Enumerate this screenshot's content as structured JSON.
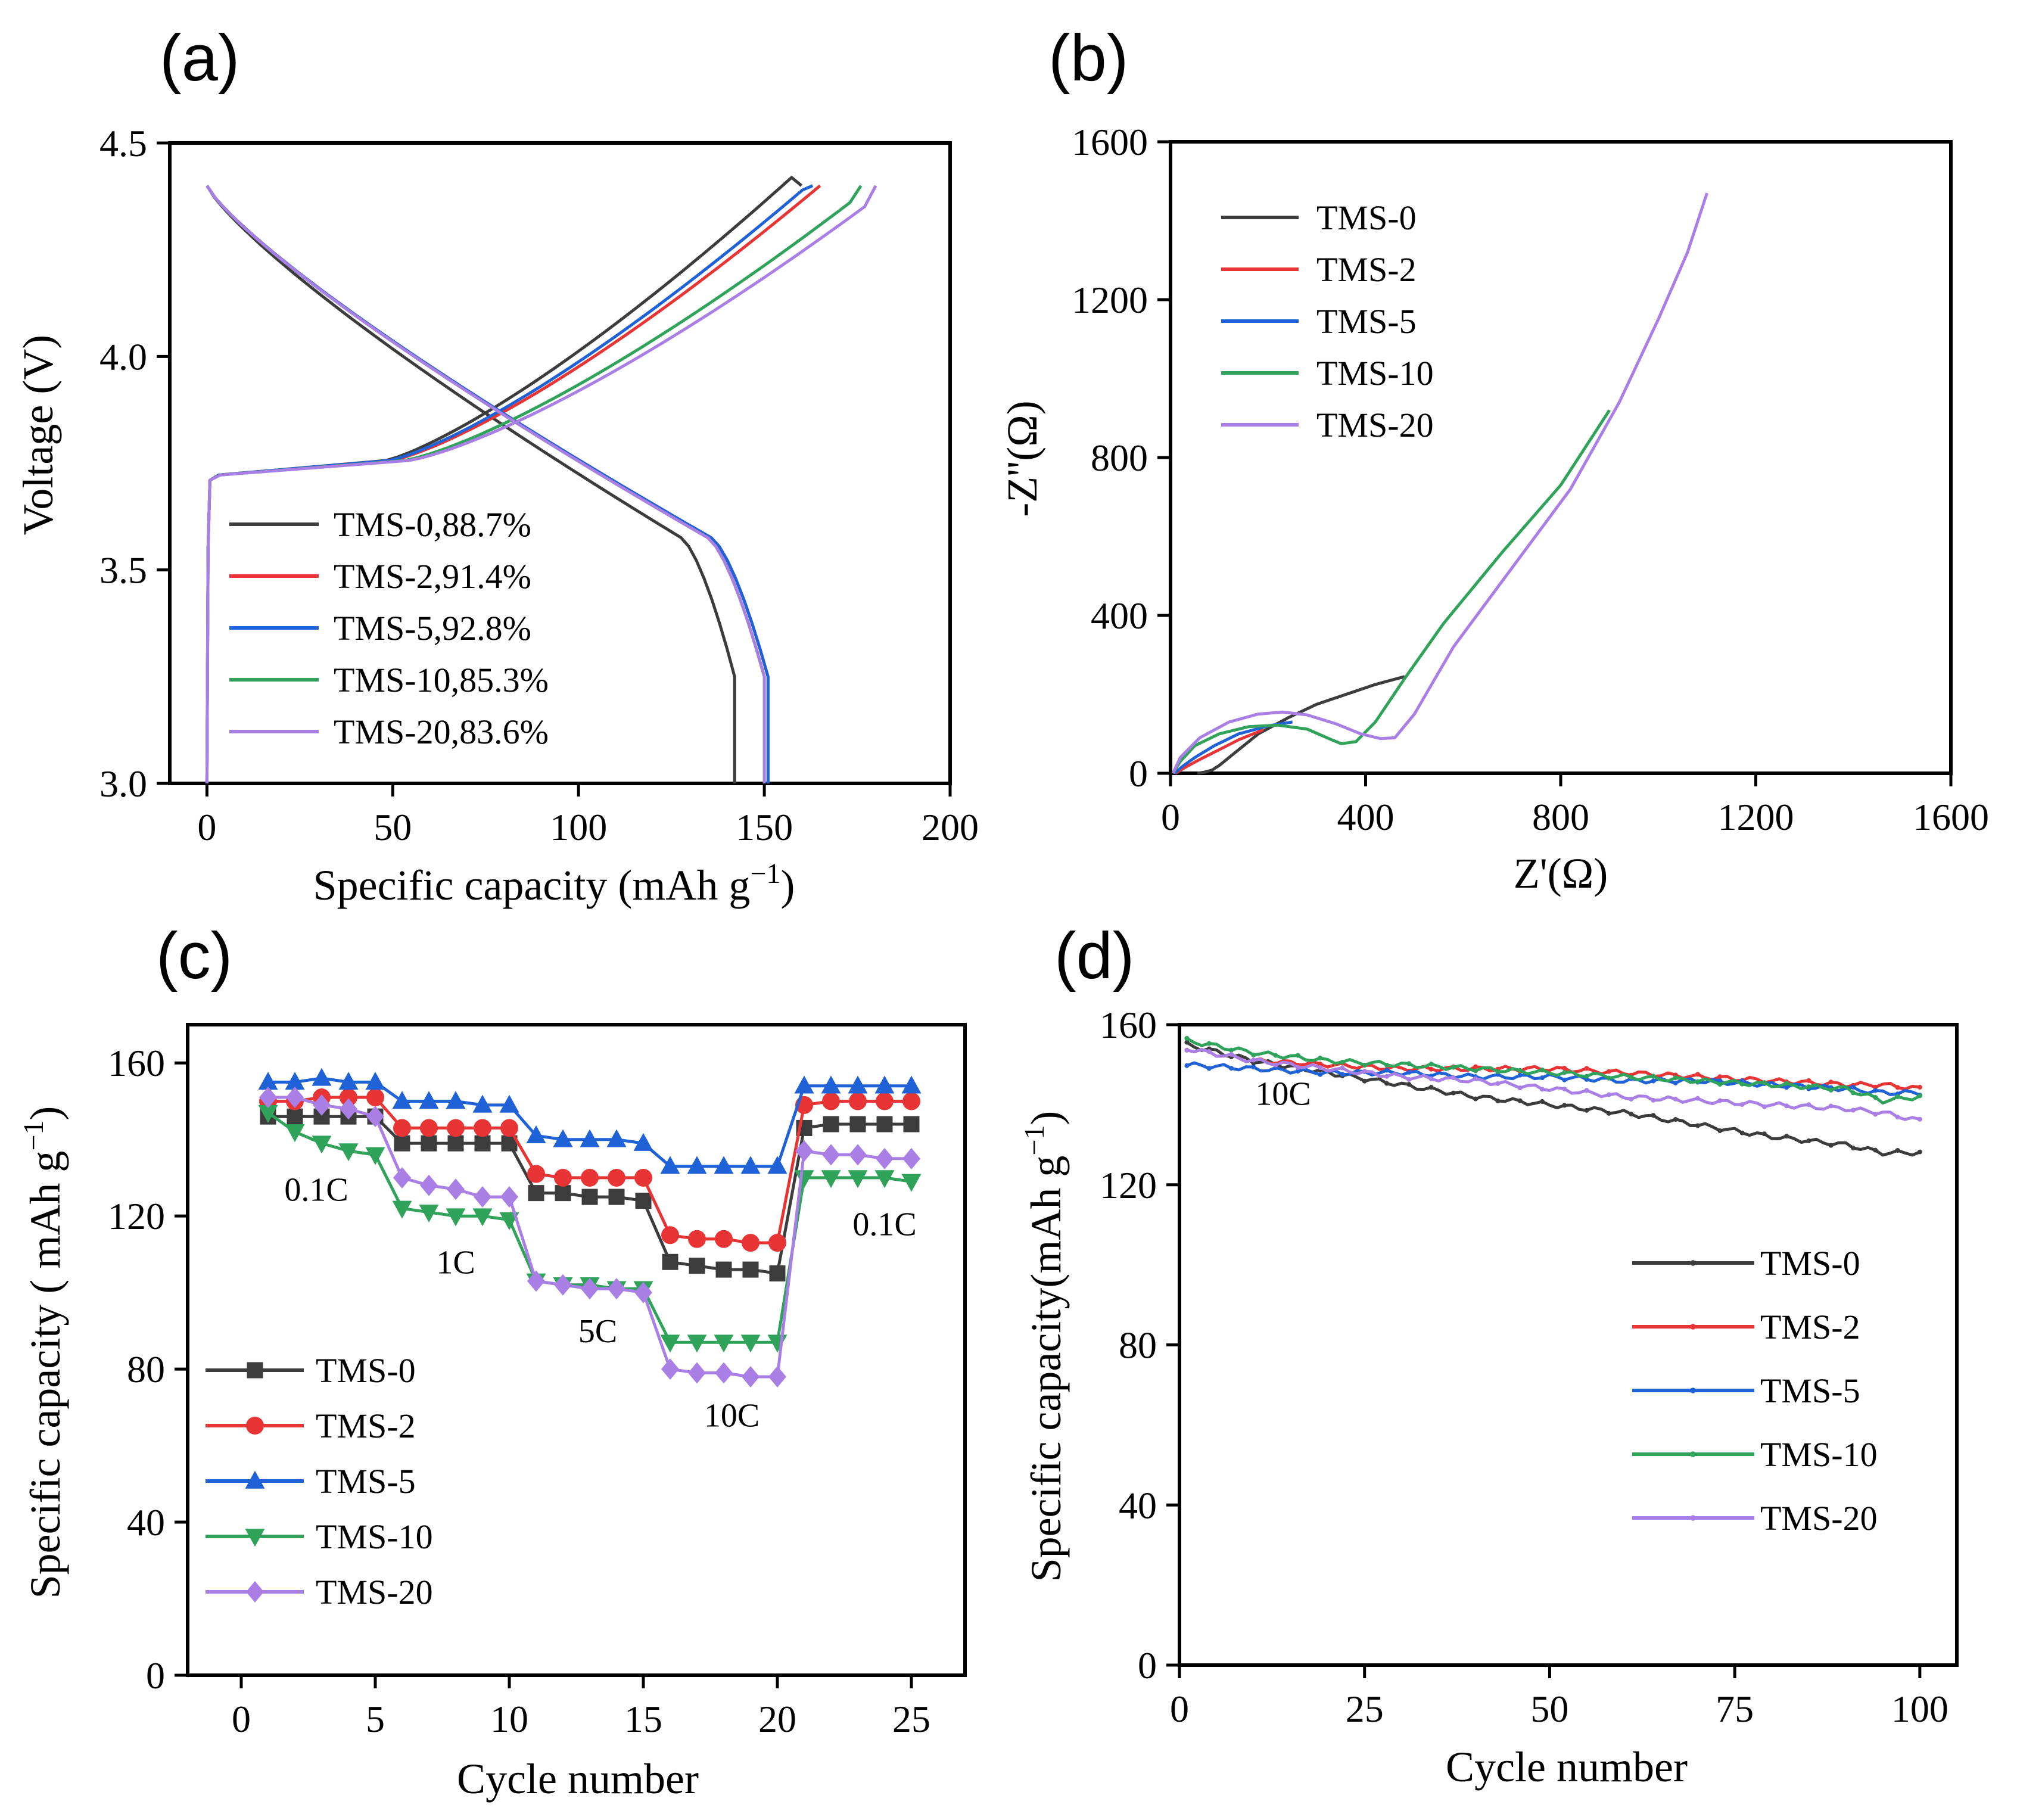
{
  "colors": {
    "TMS-0": "#3c3c3c",
    "TMS-2": "#e83434",
    "TMS-5": "#1f62d8",
    "TMS-10": "#2fa35a",
    "TMS-20": "#a97fe6"
  },
  "chart_data": [
    {
      "id": "a",
      "panel_label": "(a)",
      "type": "line",
      "title": "",
      "xlabel": "Specific capacity (mAh g",
      "xlabel_sup": "−1",
      "xlabel_end": ")",
      "ylabel": "Voltage (V)",
      "xlim": [
        -10,
        200
      ],
      "ylim": [
        3.0,
        4.5
      ],
      "xticks": [
        0,
        50,
        100,
        150,
        200
      ],
      "yticks": [
        3.0,
        3.5,
        4.0,
        4.5
      ],
      "yticklabels": [
        "3.0",
        "3.5",
        "4.0",
        "4.5"
      ],
      "legend_position": "bottom-left",
      "legend": [
        "TMS-0,88.7%",
        "TMS-2,91.4%",
        "TMS-5,92.8%",
        "TMS-10,85.3%",
        "TMS-20,83.6%"
      ],
      "series": [
        {
          "name": "TMS-0",
          "charge_end": 160,
          "discharge_end": 142,
          "charge_shift": 0.04
        },
        {
          "name": "TMS-2",
          "charge_end": 165,
          "discharge_end": 151,
          "charge_shift": 0.0
        },
        {
          "name": "TMS-5",
          "charge_end": 163,
          "discharge_end": 151,
          "charge_shift": 0.01
        },
        {
          "name": "TMS-10",
          "charge_end": 176,
          "discharge_end": 150,
          "charge_shift": -0.02
        },
        {
          "name": "TMS-20",
          "charge_end": 180,
          "discharge_end": 150,
          "charge_shift": -0.03
        }
      ]
    },
    {
      "id": "b",
      "panel_label": "(b)",
      "type": "line",
      "title": "",
      "xlabel": "Z'(Ω)",
      "ylabel": "-Z''(Ω)",
      "xlim": [
        0,
        1600
      ],
      "ylim": [
        0,
        1600
      ],
      "xticks": [
        0,
        400,
        800,
        1200,
        1600
      ],
      "yticks": [
        0,
        400,
        800,
        1200,
        1600
      ],
      "legend_position": "top-left",
      "legend": [
        "TMS-0",
        "TMS-2",
        "TMS-5",
        "TMS-10",
        "TMS-20"
      ],
      "series": [
        {
          "name": "TMS-0",
          "x": [
            55,
            70,
            85,
            100,
            130,
            180,
            240,
            300,
            360,
            420,
            480
          ],
          "y": [
            0,
            3,
            8,
            20,
            50,
            100,
            140,
            175,
            200,
            225,
            245
          ]
        },
        {
          "name": "TMS-2",
          "x": [
            10,
            30,
            60,
            100,
            140,
            190
          ],
          "y": [
            0,
            15,
            35,
            60,
            85,
            110
          ]
        },
        {
          "name": "TMS-5",
          "x": [
            8,
            25,
            50,
            90,
            140,
            200,
            250
          ],
          "y": [
            0,
            18,
            40,
            70,
            100,
            120,
            130
          ]
        },
        {
          "name": "TMS-10",
          "x": [
            5,
            20,
            50,
            100,
            160,
            220,
            280,
            330,
            350,
            380,
            420,
            480,
            560,
            680,
            800,
            900
          ],
          "y": [
            0,
            30,
            70,
            100,
            118,
            122,
            112,
            85,
            75,
            80,
            130,
            240,
            380,
            560,
            730,
            920
          ]
        },
        {
          "name": "TMS-20",
          "x": [
            5,
            20,
            60,
            120,
            180,
            230,
            280,
            340,
            390,
            430,
            460,
            500,
            580,
            700,
            820,
            920,
            1000,
            1060,
            1100
          ],
          "y": [
            0,
            40,
            90,
            130,
            150,
            155,
            148,
            125,
            100,
            88,
            90,
            150,
            320,
            520,
            720,
            940,
            1150,
            1320,
            1470
          ]
        }
      ]
    },
    {
      "id": "c",
      "panel_label": "(c)",
      "type": "line",
      "title": "",
      "xlabel": "Cycle number",
      "ylabel": "Specific capacity (  mAh g",
      "ylabel_sup": "−1",
      "ylabel_end": ")",
      "xlim": [
        -2,
        27
      ],
      "ylim": [
        0,
        170
      ],
      "xticks": [
        0,
        5,
        10,
        15,
        20,
        25
      ],
      "yticks": [
        0,
        40,
        80,
        120,
        160
      ],
      "legend_position": "bottom-left",
      "legend": [
        "TMS-0",
        "TMS-2",
        "TMS-5",
        "TMS-10",
        "TMS-20"
      ],
      "annotations": [
        {
          "text": "0.1C",
          "x": 2.8,
          "y": 124
        },
        {
          "text": "1C",
          "x": 8.0,
          "y": 105
        },
        {
          "text": "5C",
          "x": 13.3,
          "y": 87
        },
        {
          "text": "10C",
          "x": 18.3,
          "y": 65
        },
        {
          "text": "0.1C",
          "x": 24.0,
          "y": 115
        }
      ],
      "x": [
        1,
        2,
        3,
        4,
        5,
        6,
        7,
        8,
        9,
        10,
        11,
        12,
        13,
        14,
        15,
        16,
        17,
        18,
        19,
        20,
        21,
        22,
        23,
        24,
        25
      ],
      "series": [
        {
          "name": "TMS-0",
          "marker": "square",
          "values": [
            146,
            146,
            146,
            146,
            146,
            139,
            139,
            139,
            139,
            139,
            126,
            126,
            125,
            125,
            124,
            108,
            107,
            106,
            106,
            105,
            143,
            144,
            144,
            144,
            144
          ]
        },
        {
          "name": "TMS-2",
          "marker": "circle",
          "values": [
            150,
            150,
            151,
            151,
            151,
            143,
            143,
            143,
            143,
            143,
            131,
            130,
            130,
            130,
            130,
            115,
            114,
            114,
            113,
            113,
            149,
            150,
            150,
            150,
            150
          ]
        },
        {
          "name": "TMS-5",
          "marker": "triangle-up",
          "values": [
            155,
            155,
            156,
            155,
            155,
            150,
            150,
            150,
            149,
            149,
            141,
            140,
            140,
            140,
            139,
            133,
            133,
            133,
            133,
            133,
            154,
            154,
            154,
            154,
            154
          ]
        },
        {
          "name": "TMS-10",
          "marker": "triangle-down",
          "values": [
            147,
            142,
            139,
            137,
            136,
            122,
            121,
            120,
            120,
            119,
            103,
            102,
            102,
            101,
            101,
            87,
            87,
            87,
            87,
            87,
            130,
            130,
            130,
            130,
            129
          ]
        },
        {
          "name": "TMS-20",
          "marker": "diamond",
          "values": [
            151,
            151,
            149,
            148,
            146,
            130,
            128,
            127,
            125,
            125,
            103,
            102,
            101,
            101,
            100,
            80,
            79,
            79,
            78,
            78,
            137,
            136,
            136,
            135,
            135
          ]
        }
      ]
    },
    {
      "id": "d",
      "panel_label": "(d)",
      "type": "line",
      "title": "",
      "xlabel": "Cycle number",
      "ylabel": "Specific capacity(mAh g",
      "ylabel_sup": "−1",
      "ylabel_end": ")",
      "xlim": [
        0,
        105
      ],
      "ylim": [
        0,
        160
      ],
      "xticks": [
        0,
        25,
        50,
        75,
        100
      ],
      "yticks": [
        0,
        40,
        80,
        120,
        160
      ],
      "legend_position": "bottom-right",
      "legend": [
        "TMS-0",
        "TMS-2",
        "TMS-5",
        "TMS-10",
        "TMS-20"
      ],
      "annotations": [
        {
          "text": "10C",
          "x": 14,
          "y": 140
        }
      ],
      "x": [
        1,
        10,
        20,
        30,
        40,
        50,
        60,
        70,
        80,
        90,
        95,
        100
      ],
      "series": [
        {
          "name": "TMS-0",
          "values": [
            155,
            151,
            148,
            145,
            142,
            140,
            138,
            135,
            132,
            130,
            128,
            128
          ]
        },
        {
          "name": "TMS-2",
          "values": [
            154,
            151,
            150,
            149,
            149,
            149,
            148,
            147,
            146,
            145,
            145,
            144
          ]
        },
        {
          "name": "TMS-5",
          "values": [
            150,
            149,
            148,
            148,
            147,
            147,
            146,
            146,
            145,
            144,
            143,
            143
          ]
        },
        {
          "name": "TMS-10",
          "values": [
            156,
            153,
            151,
            150,
            149,
            148,
            147,
            146,
            145,
            144,
            141,
            142
          ]
        },
        {
          "name": "TMS-20",
          "values": [
            154,
            151,
            149,
            147,
            146,
            144,
            142,
            141,
            140,
            139,
            138,
            136
          ]
        }
      ]
    }
  ]
}
